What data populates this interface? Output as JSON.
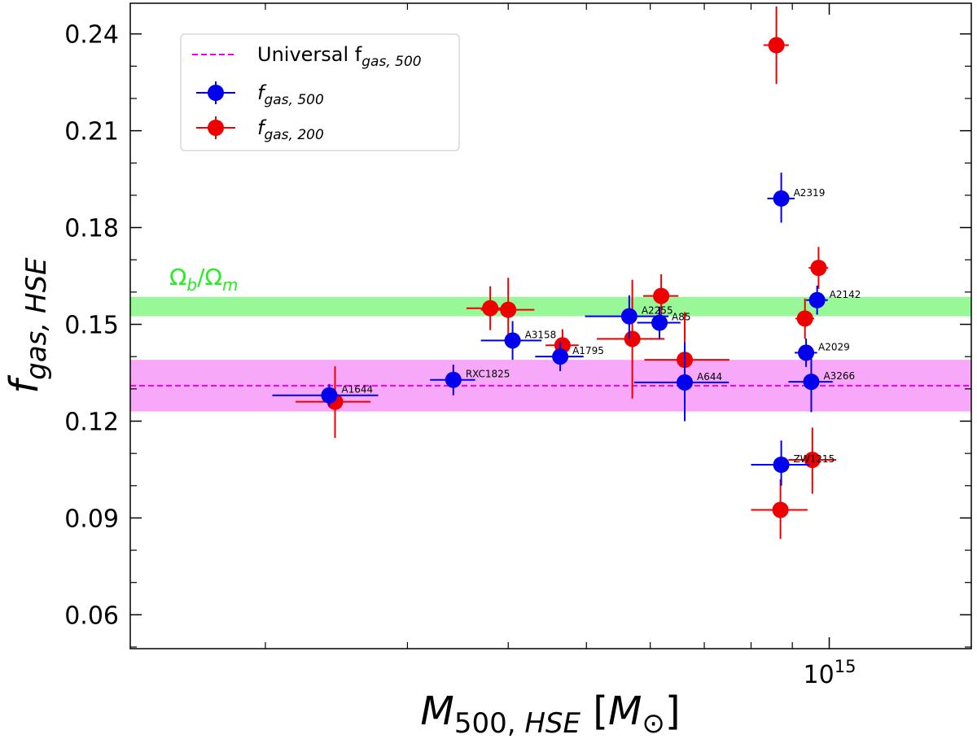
{
  "chart_data": {
    "type": "scatter",
    "xscale": "log",
    "xlim": [
      136000000000000,
      1500000000000000
    ],
    "ylim": [
      0.0495,
      0.2495
    ],
    "xlabel": "M_{500,HSE} [M_⊙]",
    "ylabel": "f_{gas,HSE}",
    "x_tick_labels": [
      {
        "value": 1000000000000000,
        "label": "10^15"
      }
    ],
    "y_ticks": [
      0.06,
      0.09,
      0.12,
      0.15,
      0.18,
      0.21,
      0.24
    ],
    "y_tick_labels": [
      "0.06",
      "0.09",
      "0.12",
      "0.15",
      "0.18",
      "0.21",
      "0.24"
    ],
    "bands": [
      {
        "name": "Omega_b/Omega_m",
        "label": "Ω_b/Ω_m",
        "ymin": 0.1525,
        "ymax": 0.1585,
        "color": "#98f898"
      },
      {
        "name": "Universal f_gas,500 range",
        "ymin": 0.123,
        "ymax": 0.139,
        "color": "#f8a8f8"
      }
    ],
    "lines": [
      {
        "name": "Universal f_gas,500",
        "y": 0.131,
        "color": "#ee00ee",
        "style": "dashed"
      }
    ],
    "legend": {
      "position": "top-left",
      "entries": [
        {
          "label_main": "Universal f",
          "label_sub": "gas, 500",
          "color": "#ee00ee",
          "kind": "dashed-line"
        },
        {
          "label_main": "f",
          "label_sub": "gas, 500",
          "color": "#0000ee",
          "kind": "errorbar"
        },
        {
          "label_main": "f",
          "label_sub": "gas, 200",
          "color": "#ee0000",
          "kind": "errorbar"
        }
      ]
    },
    "series": [
      {
        "name": "f_gas,500",
        "color": "#0000ee",
        "points": [
          {
            "label": "A1644",
            "x": 240000000000000,
            "y": 0.128,
            "xlo": 204000000000000,
            "xhi": 276000000000000,
            "ylo": 0.1245,
            "yhi": 0.1315
          },
          {
            "label": "RXC1825",
            "x": 342000000000000,
            "y": 0.1328,
            "xlo": 320000000000000,
            "xhi": 364000000000000,
            "ylo": 0.128,
            "yhi": 0.1375
          },
          {
            "label": "A3158",
            "x": 405000000000000,
            "y": 0.145,
            "xlo": 370000000000000,
            "xhi": 440000000000000,
            "ylo": 0.139,
            "yhi": 0.151
          },
          {
            "label": "A1795",
            "x": 464000000000000,
            "y": 0.14,
            "xlo": 432000000000000,
            "xhi": 496000000000000,
            "ylo": 0.1355,
            "yhi": 0.1445
          },
          {
            "label": "A2255",
            "x": 565000000000000,
            "y": 0.1525,
            "xlo": 498000000000000,
            "xhi": 632000000000000,
            "ylo": 0.1455,
            "yhi": 0.159
          },
          {
            "label": "A85",
            "x": 616000000000000,
            "y": 0.1505,
            "xlo": 578000000000000,
            "xhi": 654000000000000,
            "ylo": 0.1455,
            "yhi": 0.1555
          },
          {
            "label": "A644",
            "x": 662000000000000,
            "y": 0.132,
            "xlo": 573000000000000,
            "xhi": 751000000000000,
            "ylo": 0.12,
            "yhi": 0.1445
          },
          {
            "label": "A2319",
            "x": 872000000000000,
            "y": 0.189,
            "xlo": 838000000000000,
            "xhi": 906000000000000,
            "ylo": 0.1815,
            "yhi": 0.197
          },
          {
            "label": "ZW1215",
            "x": 872000000000000,
            "y": 0.1065,
            "xlo": 800000000000000,
            "xhi": 944000000000000,
            "ylo": 0.1,
            "yhi": 0.114
          },
          {
            "label": "A2029",
            "x": 936000000000000,
            "y": 0.1412,
            "xlo": 906000000000000,
            "xhi": 966000000000000,
            "ylo": 0.1368,
            "yhi": 0.1456
          },
          {
            "label": "A2142",
            "x": 966000000000000,
            "y": 0.1575,
            "xlo": 936000000000000,
            "xhi": 996000000000000,
            "ylo": 0.153,
            "yhi": 0.162
          },
          {
            "label": "A3266",
            "x": 950000000000000,
            "y": 0.1322,
            "xlo": 890000000000000,
            "xhi": 1010000000000000,
            "ylo": 0.1228,
            "yhi": 0.1416
          }
        ]
      },
      {
        "name": "f_gas,200",
        "color": "#ee0000",
        "points": [
          {
            "x": 244000000000000,
            "y": 0.126,
            "xlo": 218000000000000,
            "xhi": 270000000000000,
            "ylo": 0.1148,
            "yhi": 0.137
          },
          {
            "x": 380000000000000,
            "y": 0.155,
            "xlo": 355000000000000,
            "xhi": 404000000000000,
            "ylo": 0.1482,
            "yhi": 0.1618
          },
          {
            "x": 400000000000000,
            "y": 0.1545,
            "xlo": 370000000000000,
            "xhi": 431000000000000,
            "ylo": 0.1446,
            "yhi": 0.1644
          },
          {
            "x": 467000000000000,
            "y": 0.1435,
            "xlo": 445000000000000,
            "xhi": 489000000000000,
            "ylo": 0.1385,
            "yhi": 0.1485
          },
          {
            "x": 570000000000000,
            "y": 0.1455,
            "xlo": 515000000000000,
            "xhi": 625000000000000,
            "ylo": 0.127,
            "yhi": 0.1638
          },
          {
            "x": 619000000000000,
            "y": 0.1588,
            "xlo": 588000000000000,
            "xhi": 650000000000000,
            "ylo": 0.1525,
            "yhi": 0.1655
          },
          {
            "x": 662000000000000,
            "y": 0.139,
            "xlo": 590000000000000,
            "xhi": 752000000000000,
            "ylo": 0.124,
            "yhi": 0.1538
          },
          {
            "x": 860000000000000,
            "y": 0.2365,
            "xlo": 829000000000000,
            "xhi": 891000000000000,
            "ylo": 0.2245,
            "yhi": 0.2485
          },
          {
            "x": 870000000000000,
            "y": 0.0925,
            "xlo": 800000000000000,
            "xhi": 940000000000000,
            "ylo": 0.0835,
            "yhi": 0.102
          },
          {
            "x": 933000000000000,
            "y": 0.1518,
            "xlo": 908000000000000,
            "xhi": 958000000000000,
            "ylo": 0.1455,
            "yhi": 0.158
          },
          {
            "x": 970000000000000,
            "y": 0.1675,
            "xlo": 943000000000000,
            "xhi": 997000000000000,
            "ylo": 0.161,
            "yhi": 0.174
          },
          {
            "x": 953000000000000,
            "y": 0.108,
            "xlo": 890000000000000,
            "xhi": 1020000000000000,
            "ylo": 0.0975,
            "yhi": 0.118
          }
        ]
      }
    ]
  }
}
